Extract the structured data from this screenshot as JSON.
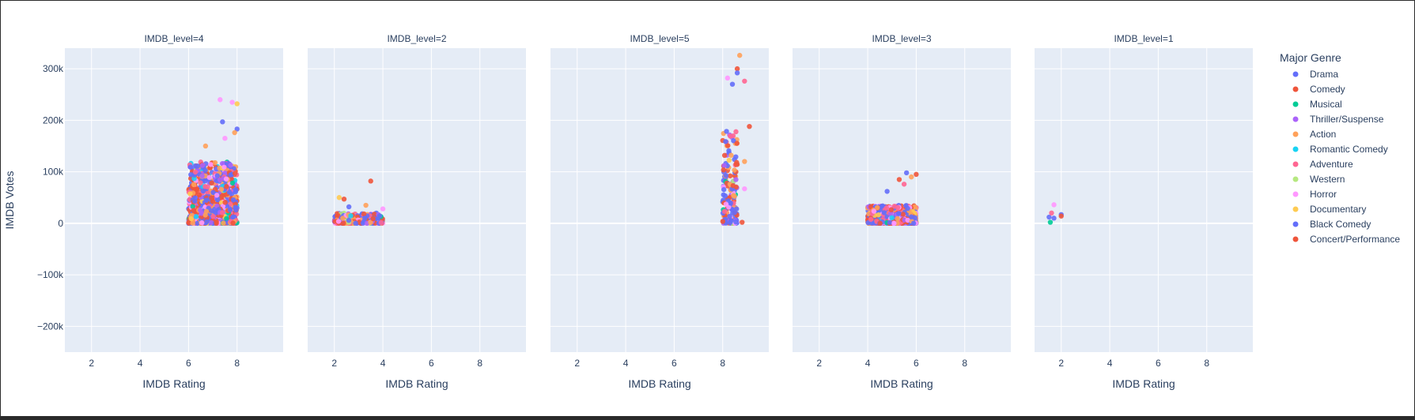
{
  "chart_data": {
    "type": "scatter",
    "facet_variable": "IMDB_level",
    "facets": [
      {
        "title": "IMDB_level=4",
        "x_range": [
          6,
          8
        ],
        "y_cap": 120000,
        "n": 900,
        "outliers": [
          [
            7.3,
            240000
          ],
          [
            7.8,
            235000
          ],
          [
            8.0,
            232000
          ],
          [
            7.4,
            197000
          ],
          [
            8.0,
            183000
          ],
          [
            7.9,
            176000
          ],
          [
            6.7,
            150000
          ],
          [
            7.5,
            165000
          ]
        ]
      },
      {
        "title": "IMDB_level=2",
        "x_range": [
          2,
          4
        ],
        "y_cap": 20000,
        "n": 220,
        "outliers": [
          [
            3.5,
            82000
          ],
          [
            2.2,
            50000
          ],
          [
            2.4,
            47000
          ],
          [
            3.3,
            35000
          ],
          [
            4.0,
            28000
          ],
          [
            2.6,
            32000
          ]
        ]
      },
      {
        "title": "IMDB_level=5",
        "x_range": [
          8,
          8.6
        ],
        "y_cap": 180000,
        "n": 170,
        "outliers": [
          [
            8.7,
            326000
          ],
          [
            8.6,
            300000
          ],
          [
            8.6,
            292000
          ],
          [
            8.2,
            282000
          ],
          [
            8.4,
            270000
          ],
          [
            8.9,
            276000
          ],
          [
            9.1,
            188000
          ],
          [
            8.9,
            120000
          ],
          [
            8.9,
            67000
          ],
          [
            8.8,
            2000
          ]
        ]
      },
      {
        "title": "IMDB_level=3",
        "x_range": [
          4,
          6
        ],
        "y_cap": 35000,
        "n": 700,
        "outliers": [
          [
            5.6,
            98000
          ],
          [
            6.0,
            95000
          ],
          [
            5.8,
            90000
          ],
          [
            5.3,
            85000
          ],
          [
            4.8,
            62000
          ],
          [
            5.5,
            76000
          ]
        ]
      },
      {
        "title": "IMDB_level=1",
        "x_range": [
          1.5,
          2
        ],
        "y_cap": 0,
        "n": 0,
        "outliers": [
          [
            1.7,
            36000
          ],
          [
            1.5,
            12000
          ],
          [
            1.6,
            20000
          ],
          [
            1.55,
            2000
          ],
          [
            1.7,
            10000
          ],
          [
            2.0,
            17000
          ],
          [
            2.0,
            14000
          ]
        ]
      }
    ],
    "xlabel": "IMDB Rating",
    "ylabel": "IMDB Votes",
    "xlim": [
      0.9,
      9.9
    ],
    "ylim": [
      -250000,
      340000
    ],
    "xticks": [
      2,
      4,
      6,
      8
    ],
    "yticks": [
      {
        "value": 300000,
        "label": "300k"
      },
      {
        "value": 200000,
        "label": "200k"
      },
      {
        "value": 100000,
        "label": "100k"
      },
      {
        "value": 0,
        "label": "0"
      },
      {
        "value": -100000,
        "label": "−100k"
      },
      {
        "value": -200000,
        "label": "−200k"
      }
    ],
    "grid": true,
    "legend": {
      "title": "Major Genre",
      "placement": "right",
      "entries": [
        {
          "name": "Drama",
          "color": "#636efa"
        },
        {
          "name": "Comedy",
          "color": "#EF553B"
        },
        {
          "name": "Musical",
          "color": "#00cc96"
        },
        {
          "name": "Thriller/Suspense",
          "color": "#ab63fa"
        },
        {
          "name": "Action",
          "color": "#FFA15A"
        },
        {
          "name": "Romantic Comedy",
          "color": "#19d3f3"
        },
        {
          "name": "Adventure",
          "color": "#FF6692"
        },
        {
          "name": "Western",
          "color": "#B6E880"
        },
        {
          "name": "Horror",
          "color": "#FF97FF"
        },
        {
          "name": "Documentary",
          "color": "#FECB52"
        },
        {
          "name": "Black Comedy",
          "color": "#636efa"
        },
        {
          "name": "Concert/Performance",
          "color": "#EF553B"
        }
      ]
    }
  }
}
